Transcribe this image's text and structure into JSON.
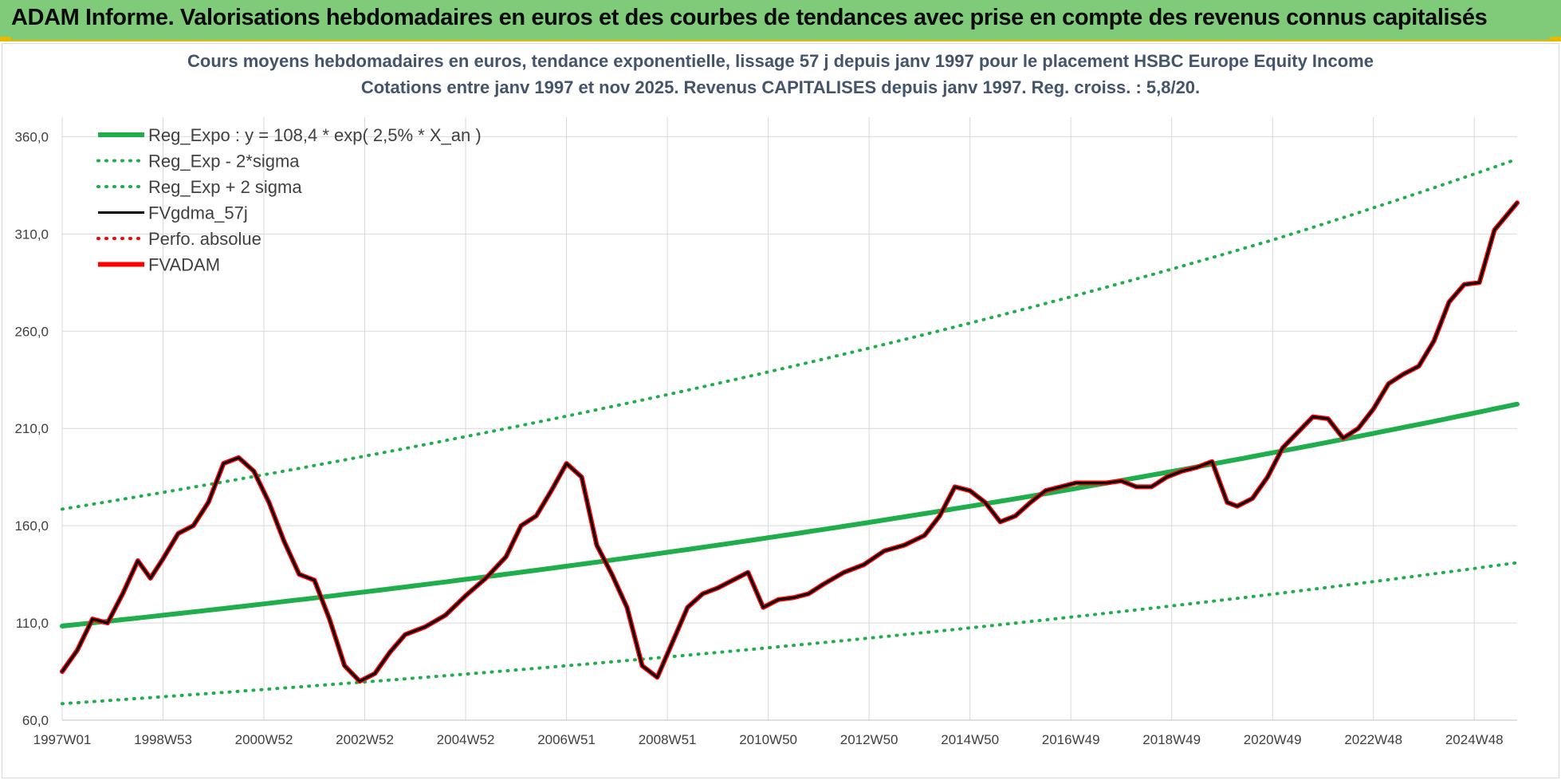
{
  "banner": {
    "title": "ADAM Informe. Valorisations hebdomadaires en euros et des courbes de tendances avec prise en compte des revenus connus capitalisés"
  },
  "colors": {
    "banner_bg": "#7fcb7a",
    "accent_yellow": "#e6b800",
    "regression_green": "#1fae4b",
    "price_red": "#ff0000",
    "smooth_black": "#000000"
  },
  "chart_data": {
    "type": "line",
    "title": "Cours moyens hebdomadaires en euros, tendance exponentielle, lissage 57 j depuis janv 1997 pour le placement HSBC Europe Equity Income",
    "subtitle": "Cotations entre janv 1997 et nov 2025. Revenus CAPITALISES depuis janv 1997. Reg. croiss. : 5,8/20.",
    "xlabel": "",
    "ylabel": "",
    "ylim": [
      60,
      370
    ],
    "xlim": [
      1997.0,
      2025.85
    ],
    "grid": true,
    "legend_position": "top-left",
    "y_ticks": [
      "60,0",
      "110,0",
      "160,0",
      "210,0",
      "260,0",
      "310,0",
      "360,0"
    ],
    "y_tick_values": [
      60,
      110,
      160,
      210,
      260,
      310,
      360
    ],
    "x_ticks": [
      "1997W01",
      "1998W53",
      "2000W52",
      "2002W52",
      "2004W52",
      "2006W51",
      "2008W51",
      "2010W50",
      "2012W50",
      "2014W50",
      "2016W49",
      "2018W49",
      "2020W49",
      "2022W48",
      "2024W48"
    ],
    "x_tick_values": [
      1997.0,
      1999.0,
      2001.0,
      2003.0,
      2005.0,
      2007.0,
      2009.0,
      2011.0,
      2013.0,
      2015.0,
      2017.0,
      2019.0,
      2021.0,
      2023.0,
      2025.0
    ],
    "series": [
      {
        "name": "Reg_Expo : y = 108,4 * exp( 2,5% *  X_an )",
        "style": "solid-thick",
        "color": "#1fae4b",
        "x": [
          1997.0,
          2001.0,
          2005.0,
          2009.0,
          2013.0,
          2017.0,
          2021.0,
          2025.85
        ],
        "values": [
          108.4,
          119.8,
          132.4,
          146.3,
          161.7,
          178.7,
          197.5,
          222.5
        ]
      },
      {
        "name": "Reg_Exp - 2*sigma",
        "style": "dotted",
        "color": "#1fae4b",
        "x": [
          1997.0,
          2001.0,
          2005.0,
          2009.0,
          2013.0,
          2017.0,
          2021.0,
          2025.85
        ],
        "values": [
          68.5,
          75.8,
          83.7,
          92.5,
          102.2,
          113.0,
          124.8,
          141.0
        ]
      },
      {
        "name": "Reg_Exp + 2 sigma",
        "style": "dotted",
        "color": "#1fae4b",
        "x": [
          1997.0,
          2001.0,
          2005.0,
          2009.0,
          2013.0,
          2017.0,
          2021.0,
          2025.85
        ],
        "values": [
          168.5,
          186.2,
          205.8,
          227.4,
          251.3,
          277.7,
          306.9,
          348.5
        ]
      },
      {
        "name": "FVgdma_57j",
        "style": "solid",
        "color": "#000000",
        "x": [
          1997.0,
          1997.3,
          1997.6,
          1997.9,
          1998.2,
          1998.5,
          1998.75,
          1999.0,
          1999.3,
          1999.6,
          1999.9,
          2000.2,
          2000.5,
          2000.8,
          2001.1,
          2001.4,
          2001.7,
          2002.0,
          2002.3,
          2002.6,
          2002.9,
          2003.2,
          2003.5,
          2003.8,
          2004.2,
          2004.6,
          2005.0,
          2005.4,
          2005.8,
          2006.1,
          2006.4,
          2006.7,
          2007.0,
          2007.3,
          2007.6,
          2007.9,
          2008.2,
          2008.5,
          2008.8,
          2009.1,
          2009.4,
          2009.7,
          2010.0,
          2010.3,
          2010.6,
          2010.9,
          2011.2,
          2011.5,
          2011.8,
          2012.1,
          2012.5,
          2012.9,
          2013.3,
          2013.7,
          2014.1,
          2014.4,
          2014.7,
          2015.0,
          2015.3,
          2015.6,
          2015.9,
          2016.2,
          2016.5,
          2016.8,
          2017.1,
          2017.4,
          2017.7,
          2018.0,
          2018.3,
          2018.6,
          2018.9,
          2019.2,
          2019.5,
          2019.8,
          2020.1,
          2020.3,
          2020.6,
          2020.9,
          2021.2,
          2021.5,
          2021.8,
          2022.1,
          2022.4,
          2022.7,
          2023.0,
          2023.3,
          2023.6,
          2023.9,
          2024.2,
          2024.5,
          2024.8,
          2025.1,
          2025.4,
          2025.85
        ],
        "values": [
          85,
          96,
          112,
          110,
          125,
          142,
          133,
          143,
          156,
          160,
          172,
          192,
          195,
          188,
          172,
          152,
          135,
          132,
          112,
          88,
          80,
          84,
          95,
          104,
          108,
          114,
          124,
          133,
          144,
          160,
          165,
          178,
          192,
          185,
          150,
          135,
          118,
          88,
          82,
          100,
          118,
          125,
          128,
          132,
          136,
          118,
          122,
          123,
          125,
          130,
          136,
          140,
          147,
          150,
          155,
          165,
          180,
          178,
          172,
          162,
          165,
          172,
          178,
          180,
          182,
          182,
          182,
          183,
          180,
          180,
          185,
          188,
          190,
          193,
          172,
          170,
          174,
          185,
          200,
          208,
          216,
          215,
          205,
          210,
          220,
          233,
          238,
          242,
          255,
          275,
          284,
          285,
          312,
          326
        ]
      },
      {
        "name": "Perfo. absolue",
        "style": "dotted",
        "color": "#ff0000",
        "x": [],
        "values": []
      },
      {
        "name": "FVADAM",
        "style": "solid-thick",
        "color": "#ff0000",
        "x": [
          1997.0,
          1997.3,
          1997.6,
          1997.9,
          1998.2,
          1998.5,
          1998.75,
          1999.0,
          1999.3,
          1999.6,
          1999.9,
          2000.2,
          2000.5,
          2000.8,
          2001.1,
          2001.4,
          2001.7,
          2002.0,
          2002.3,
          2002.6,
          2002.9,
          2003.2,
          2003.5,
          2003.8,
          2004.2,
          2004.6,
          2005.0,
          2005.4,
          2005.8,
          2006.1,
          2006.4,
          2006.7,
          2007.0,
          2007.3,
          2007.6,
          2007.9,
          2008.2,
          2008.5,
          2008.8,
          2009.1,
          2009.4,
          2009.7,
          2010.0,
          2010.3,
          2010.6,
          2010.9,
          2011.2,
          2011.5,
          2011.8,
          2012.1,
          2012.5,
          2012.9,
          2013.3,
          2013.7,
          2014.1,
          2014.4,
          2014.7,
          2015.0,
          2015.3,
          2015.6,
          2015.9,
          2016.2,
          2016.5,
          2016.8,
          2017.1,
          2017.4,
          2017.7,
          2018.0,
          2018.3,
          2018.6,
          2018.9,
          2019.2,
          2019.5,
          2019.8,
          2020.1,
          2020.3,
          2020.6,
          2020.9,
          2021.2,
          2021.5,
          2021.8,
          2022.1,
          2022.4,
          2022.7,
          2023.0,
          2023.3,
          2023.6,
          2023.9,
          2024.2,
          2024.5,
          2024.8,
          2025.1,
          2025.4,
          2025.85
        ],
        "values": [
          85,
          96,
          112,
          110,
          125,
          142,
          133,
          143,
          156,
          160,
          172,
          192,
          195,
          188,
          172,
          152,
          135,
          132,
          112,
          88,
          80,
          84,
          95,
          104,
          108,
          114,
          124,
          133,
          144,
          160,
          165,
          178,
          192,
          185,
          150,
          135,
          118,
          88,
          82,
          100,
          118,
          125,
          128,
          132,
          136,
          118,
          122,
          123,
          125,
          130,
          136,
          140,
          147,
          150,
          155,
          165,
          180,
          178,
          172,
          162,
          165,
          172,
          178,
          180,
          182,
          182,
          182,
          183,
          180,
          180,
          185,
          188,
          190,
          193,
          172,
          170,
          174,
          185,
          200,
          208,
          216,
          215,
          205,
          210,
          220,
          233,
          238,
          242,
          255,
          275,
          284,
          285,
          312,
          326
        ]
      }
    ]
  }
}
